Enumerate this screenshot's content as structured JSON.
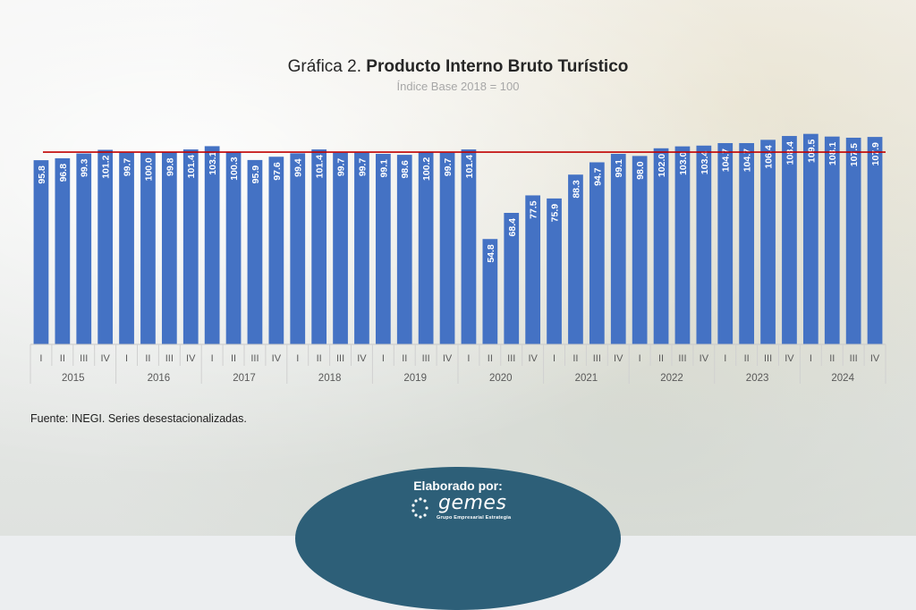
{
  "header": {
    "title_prefix": "Gráfica 2.",
    "title_main": "Producto Interno Bruto Turístico",
    "subtitle": "Índice Base 2018 = 100"
  },
  "footer": {
    "source": "Fuente: INEGI. Series desestacionalizadas.",
    "badge_label": "Elaborado por:",
    "logo_name": "gemes",
    "logo_tagline": "Grupo Empresarial Estrategia"
  },
  "chart_data": {
    "type": "bar",
    "title": "Producto Interno Bruto Turístico",
    "subtitle": "Índice Base 2018 = 100",
    "colors": {
      "bar": "#4472c4",
      "reference_line": "#c00000",
      "label": "#ffffff"
    },
    "reference_line_value": 100,
    "years": [
      "2015",
      "2016",
      "2017",
      "2018",
      "2019",
      "2020",
      "2021",
      "2022",
      "2023",
      "2024"
    ],
    "quarters": [
      "I",
      "II",
      "III",
      "IV"
    ],
    "categories": [
      "2015 I",
      "2015 II",
      "2015 III",
      "2015 IV",
      "2016 I",
      "2016 II",
      "2016 III",
      "2016 IV",
      "2017 I",
      "2017 II",
      "2017 III",
      "2017 IV",
      "2018 I",
      "2018 II",
      "2018 III",
      "2018 IV",
      "2019 I",
      "2019 II",
      "2019 III",
      "2019 IV",
      "2020 I",
      "2020 II",
      "2020 III",
      "2020 IV",
      "2021 I",
      "2021 II",
      "2021 III",
      "2021 IV",
      "2022 I",
      "2022 II",
      "2022 III",
      "2022 IV",
      "2023 I",
      "2023 II",
      "2023 III",
      "2023 IV",
      "2024 I",
      "2024 II",
      "2024 III",
      "2024 IV"
    ],
    "values": [
      95.8,
      96.8,
      99.3,
      101.2,
      99.7,
      100.0,
      99.8,
      101.4,
      103.1,
      100.3,
      95.9,
      97.6,
      99.4,
      101.4,
      99.7,
      99.7,
      99.1,
      98.6,
      100.2,
      99.7,
      101.4,
      54.8,
      68.4,
      77.5,
      75.9,
      88.3,
      94.7,
      99.1,
      98.0,
      102.0,
      103.0,
      103.4,
      104.7,
      104.7,
      106.4,
      108.4,
      109.5,
      108.1,
      107.5,
      107.9
    ],
    "labels": [
      "95.8",
      "96.8",
      "99.3",
      "101.2",
      "99.7",
      "100.0",
      "99.8",
      "101.4",
      "103.1",
      "100.3",
      "95.9",
      "97.6",
      "99.4",
      "101.4",
      "99.7",
      "99.7",
      "99.1",
      "98.6",
      "100.2",
      "99.7",
      "101.4",
      "54.8",
      "68.4",
      "77.5",
      "75.9",
      "88.3",
      "94.7",
      "99.1",
      "98.0",
      "102.0",
      "103.0",
      "103.4",
      "104.7",
      "104.7",
      "106.4",
      "108.4",
      "109.5",
      "108.1",
      "107.5",
      "107.9"
    ]
  }
}
